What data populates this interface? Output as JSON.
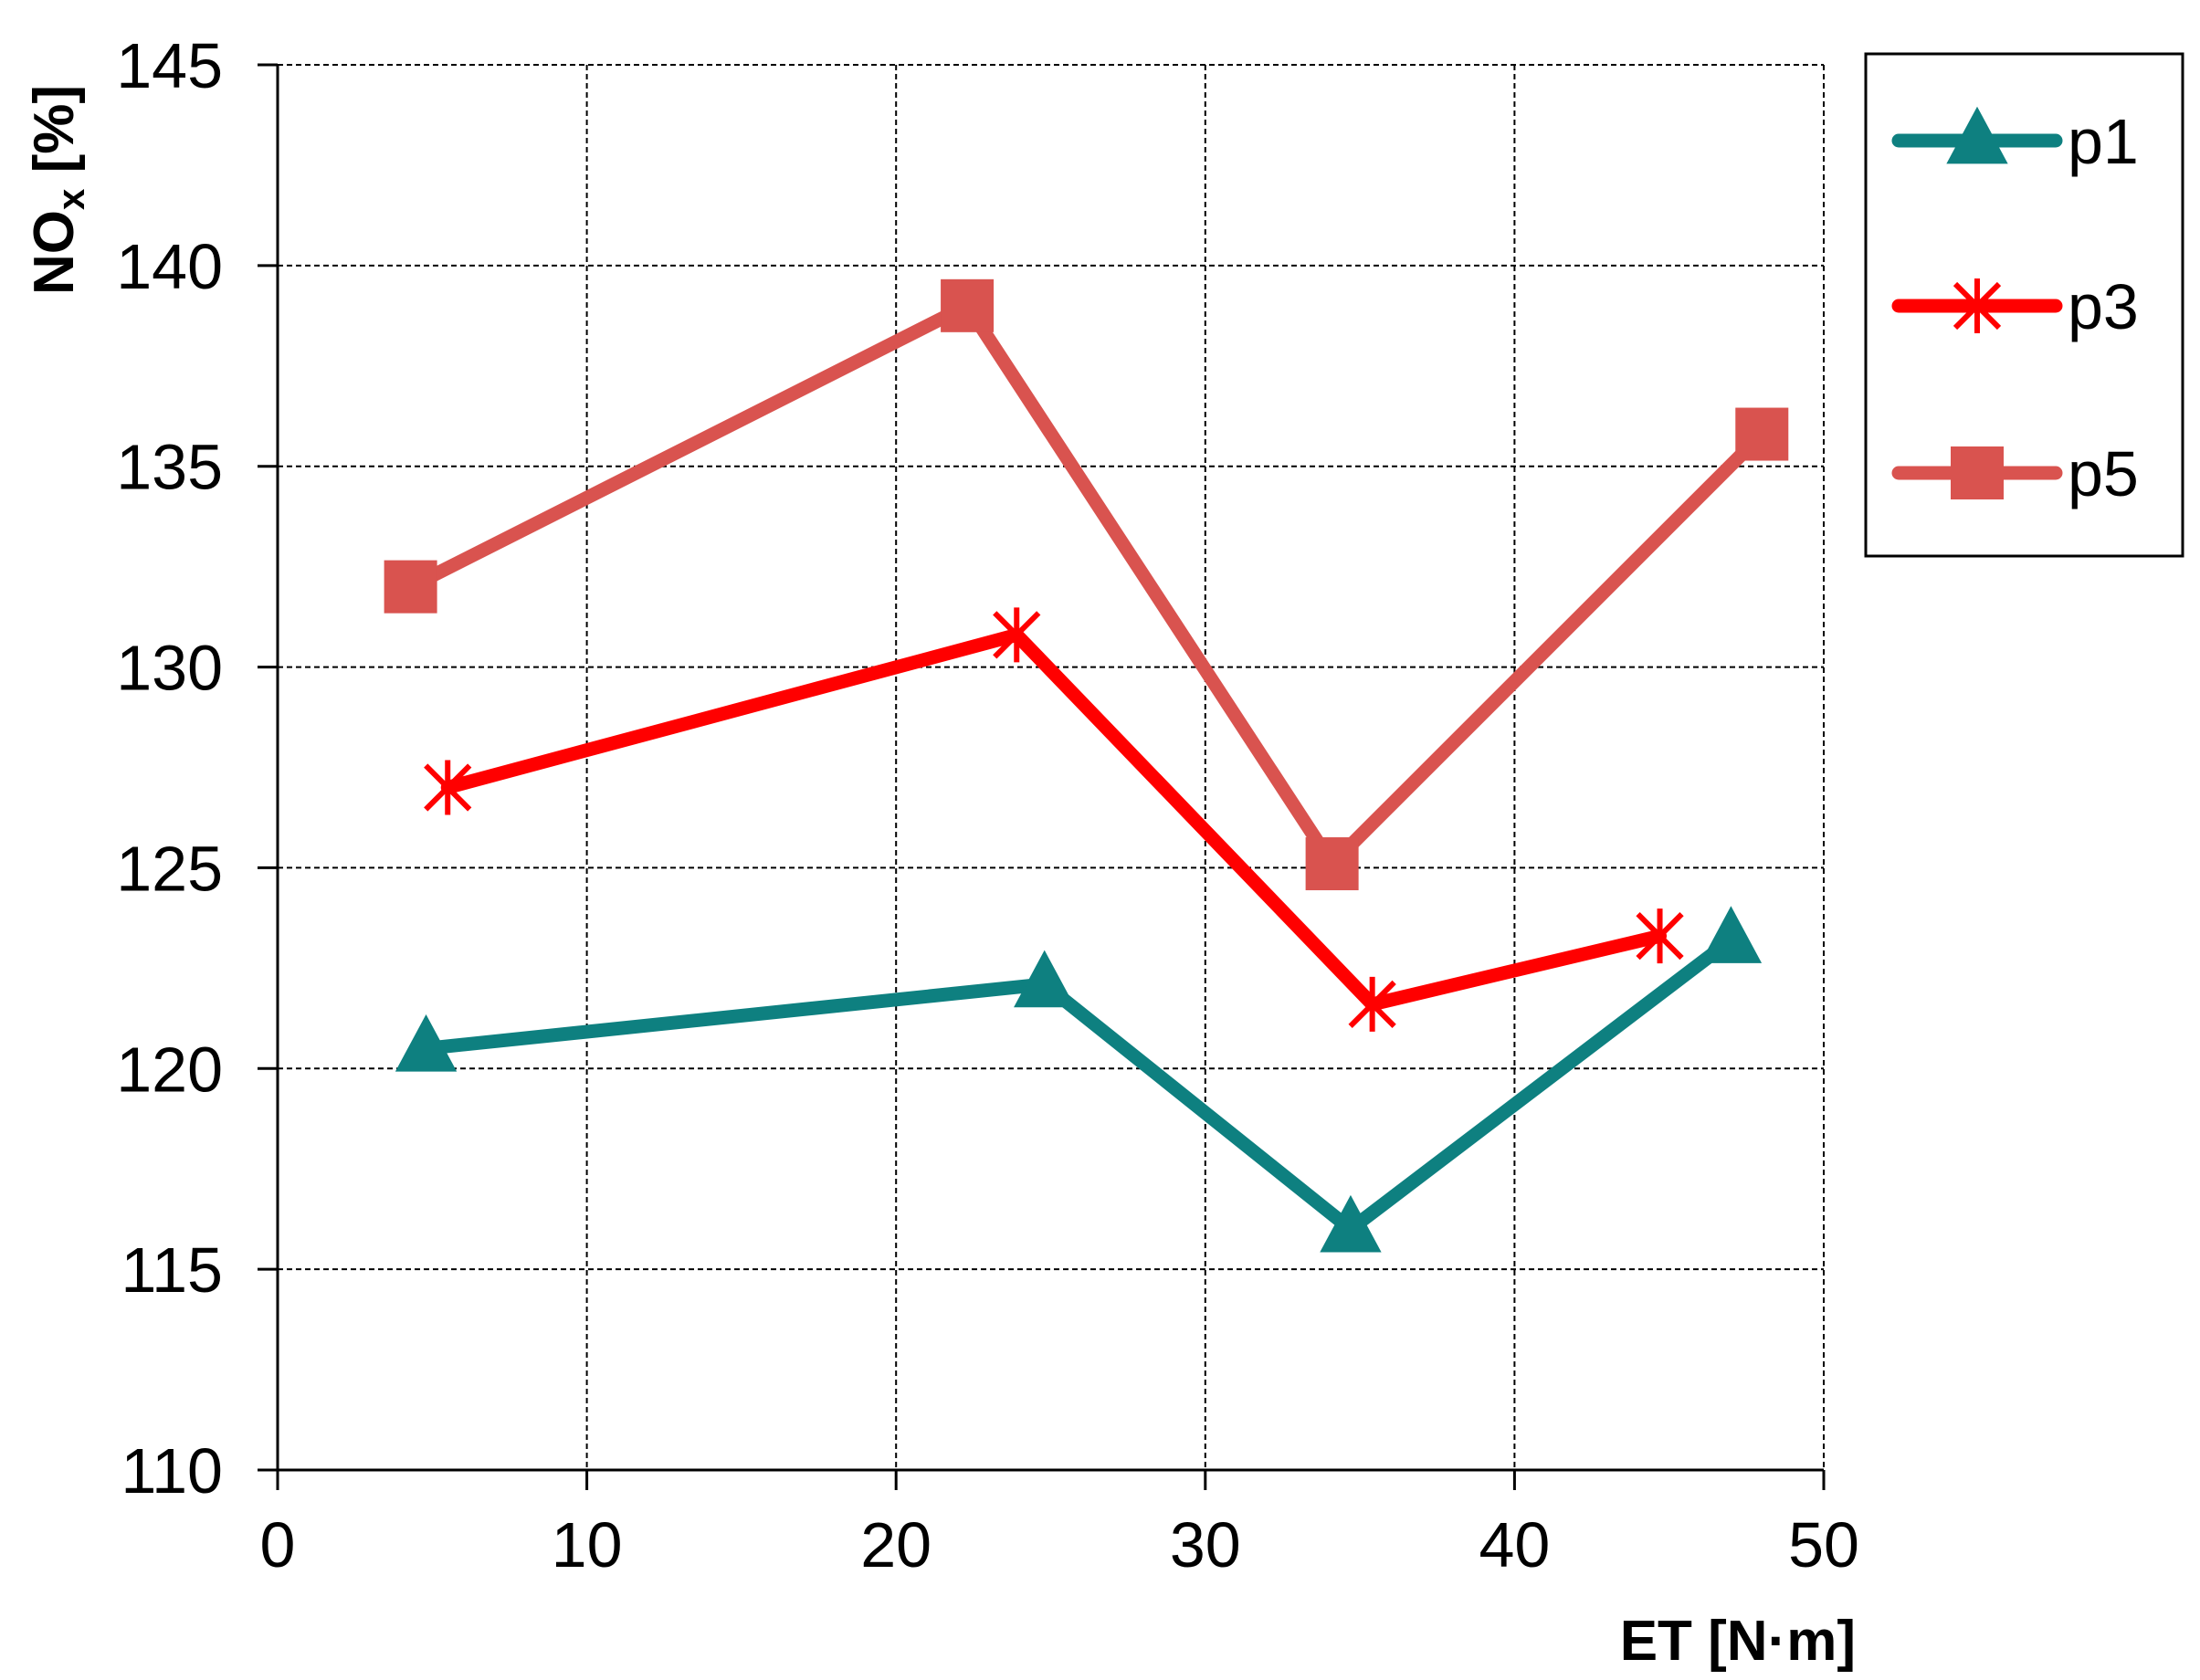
{
  "chart_data": {
    "type": "line",
    "title": "",
    "xlabel": "ET [N·m]",
    "ylabel": {
      "main": "NO",
      "subscript": "x",
      "unit": " [%]"
    },
    "xlim": [
      0,
      50
    ],
    "ylim": [
      110,
      145
    ],
    "xticks": [
      0,
      10,
      20,
      30,
      40,
      50
    ],
    "yticks": [
      110,
      115,
      120,
      125,
      130,
      135,
      140,
      145
    ],
    "grid": true,
    "legend": "right",
    "series": [
      {
        "name": "p1",
        "marker": "triangle",
        "color": "#0E8080",
        "x": [
          4.8,
          24.8,
          34.7,
          47.0
        ],
        "y": [
          120.5,
          122.1,
          116.0,
          123.2
        ]
      },
      {
        "name": "p3",
        "marker": "asterisk",
        "color": "#FF0000",
        "x": [
          5.5,
          23.9,
          35.4,
          44.7
        ],
        "y": [
          127.0,
          130.8,
          121.6,
          123.3
        ]
      },
      {
        "name": "p5",
        "marker": "square",
        "color": "#D9534F",
        "x": [
          4.3,
          22.3,
          34.1,
          48.0
        ],
        "y": [
          132.0,
          139.0,
          125.1,
          135.8
        ]
      }
    ]
  }
}
